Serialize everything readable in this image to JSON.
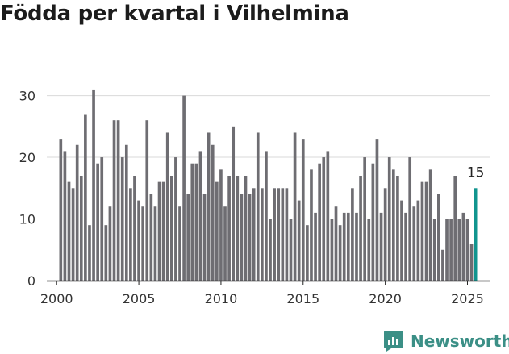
{
  "title": "Födda per kvartal i Vilhelmina",
  "brand": {
    "name": "Newsworthy",
    "icon": "newsworthy-logo-icon"
  },
  "colors": {
    "bar": "#6e6d72",
    "highlight": "#11958f",
    "grid": "#d9d9d9",
    "text": "#333333",
    "brand": "#3b8f86"
  },
  "chart_data": {
    "type": "bar",
    "x_start": 2000.25,
    "x_step": 0.25,
    "ylim": [
      0,
      34
    ],
    "xlim": [
      1999.4,
      2026.4
    ],
    "y_ticks": [
      0,
      10,
      20,
      30
    ],
    "x_ticks": [
      2000,
      2005,
      2010,
      2015,
      2020,
      2025
    ],
    "grid": true,
    "values": [
      23,
      21,
      16,
      15,
      22,
      17,
      27,
      9,
      31,
      19,
      20,
      9,
      12,
      26,
      26,
      20,
      22,
      15,
      17,
      13,
      12,
      26,
      14,
      12,
      16,
      16,
      24,
      17,
      20,
      12,
      30,
      14,
      19,
      19,
      21,
      14,
      24,
      22,
      16,
      18,
      12,
      17,
      25,
      17,
      14,
      17,
      14,
      15,
      24,
      15,
      21,
      10,
      15,
      15,
      15,
      15,
      10,
      24,
      13,
      23,
      9,
      18,
      11,
      19,
      20,
      21,
      10,
      12,
      9,
      11,
      11,
      15,
      11,
      17,
      20,
      10,
      19,
      23,
      11,
      15,
      20,
      18,
      17,
      13,
      11,
      20,
      12,
      13,
      16,
      16,
      18,
      10,
      14,
      5,
      10,
      10,
      17,
      10,
      11,
      10,
      6,
      15
    ],
    "highlight_label": "15"
  }
}
